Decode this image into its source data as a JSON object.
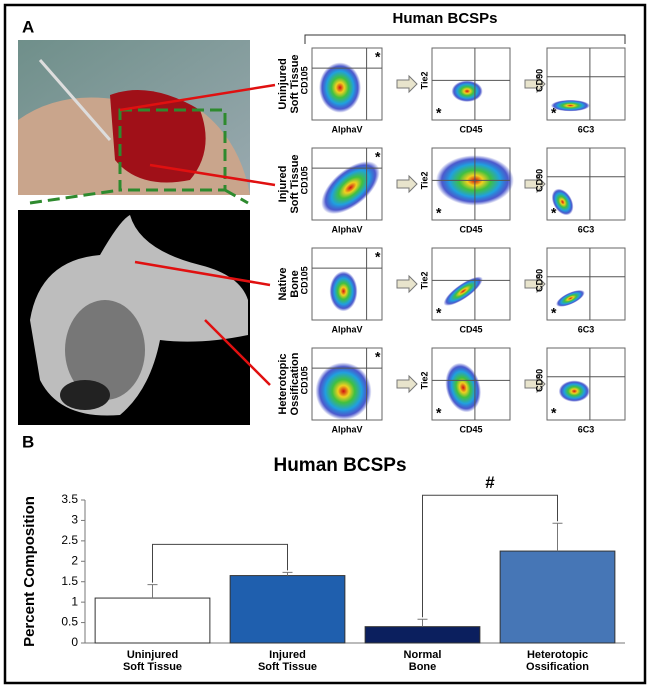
{
  "panel_a": {
    "label": "A",
    "header": "Human BCSPs",
    "rows": [
      "Uninjured\nSoft Tissue",
      "Injured\nSoft Tissue",
      "Native\nBone",
      "Heterotopic\nOssification"
    ],
    "columns": [
      {
        "x_label": "AlphaV",
        "y_label": "CD105"
      },
      {
        "x_label": "CD45",
        "y_label": "Tie2"
      },
      {
        "x_label": "6C3",
        "y_label": "CD90"
      }
    ],
    "gate_marker": "*"
  },
  "panel_b": {
    "label": "B"
  },
  "chart_data": {
    "type": "bar",
    "title": "Human BCSPs",
    "y_label": "Percent Composition",
    "categories": [
      "Uninjured\nSoft Tissue",
      "Injured\nSoft Tissue",
      "Normal\nBone",
      "Heterotopic\nOssification"
    ],
    "values": [
      1.1,
      1.65,
      0.4,
      2.25
    ],
    "errors": [
      0.33,
      0.08,
      0.18,
      0.68
    ],
    "colors": [
      "#ffffff",
      "#1f5fae",
      "#0b1f5e",
      "#4676b6"
    ],
    "ylim": [
      0,
      3.5
    ],
    "yticks": [
      0,
      0.5,
      1,
      1.5,
      2,
      2.5,
      3,
      3.5
    ],
    "annotations": [
      {
        "from": 0,
        "to": 1,
        "text": null
      },
      {
        "from": 2,
        "to": 3,
        "text": "#"
      }
    ]
  }
}
